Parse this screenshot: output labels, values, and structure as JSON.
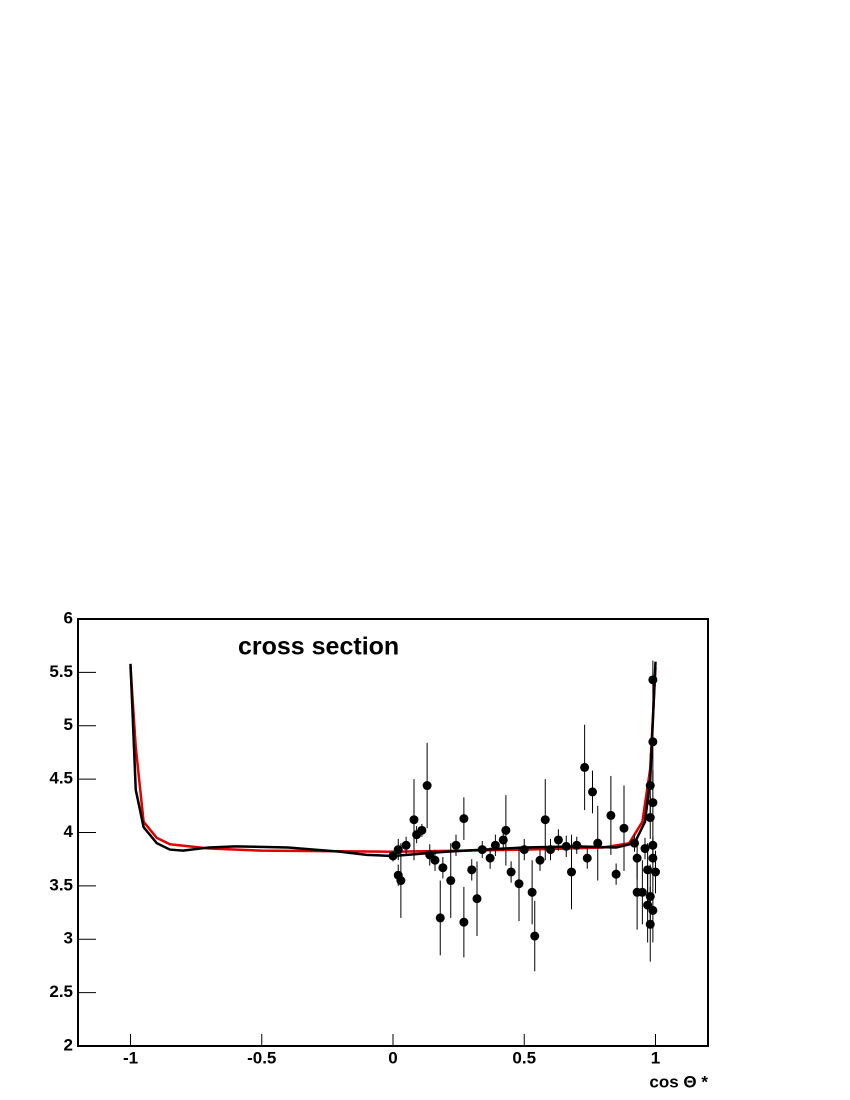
{
  "chart_data": {
    "type": "scatter",
    "title": "cross section",
    "x_label": "cos Θ *",
    "xlim": [
      -1.2,
      1.2
    ],
    "ylim": [
      2,
      6
    ],
    "xticks": [
      -1,
      -0.5,
      0,
      0.5,
      1
    ],
    "yticks": [
      2,
      2.5,
      3,
      3.5,
      4,
      4.5,
      5,
      5.5,
      6
    ],
    "series": [
      {
        "type": "line",
        "color": "#e00000",
        "x": [
          -1,
          -0.98,
          -0.95,
          -0.9,
          -0.85,
          -0.7,
          -0.5,
          0,
          0.5,
          0.8,
          0.9,
          0.95,
          0.98,
          1
        ],
        "values": [
          5.55,
          4.8,
          4.1,
          3.95,
          3.89,
          3.85,
          3.83,
          3.82,
          3.84,
          3.86,
          3.9,
          4.1,
          4.6,
          5.55
        ]
      },
      {
        "type": "line",
        "color": "#000000",
        "x": [
          -1,
          -0.98,
          -0.95,
          -0.9,
          -0.85,
          -0.8,
          -0.7,
          -0.6,
          -0.4,
          -0.2,
          -0.1,
          0,
          0.2,
          0.5,
          0.7,
          0.85,
          0.92,
          0.96,
          0.98,
          1
        ],
        "values": [
          5.58,
          4.4,
          4.05,
          3.9,
          3.84,
          3.83,
          3.86,
          3.87,
          3.86,
          3.82,
          3.79,
          3.78,
          3.82,
          3.86,
          3.87,
          3.86,
          3.9,
          4.1,
          4.5,
          5.6
        ]
      },
      {
        "type": "scatter",
        "color": "#000000",
        "x": [
          0.0,
          0.02,
          0.03,
          0.02,
          0.05,
          0.08,
          0.09,
          0.11,
          0.13,
          0.14,
          0.16,
          0.18,
          0.19,
          0.22,
          0.24,
          0.27,
          0.27,
          0.3,
          0.32,
          0.34,
          0.37,
          0.39,
          0.42,
          0.43,
          0.45,
          0.48,
          0.5,
          0.53,
          0.54,
          0.56,
          0.58,
          0.6,
          0.63,
          0.66,
          0.68,
          0.7,
          0.73,
          0.74,
          0.76,
          0.78,
          0.83,
          0.85,
          0.88,
          0.92,
          0.93,
          0.93,
          0.95,
          0.96,
          0.97,
          0.97,
          0.98,
          0.98,
          0.98,
          0.98,
          0.99,
          0.99,
          0.99,
          0.99,
          0.99,
          1.0,
          0.99
        ],
        "values": [
          3.78,
          3.6,
          3.55,
          3.84,
          3.88,
          4.12,
          3.98,
          4.02,
          4.44,
          3.79,
          3.74,
          3.2,
          3.67,
          3.55,
          3.88,
          4.13,
          3.16,
          3.65,
          3.38,
          3.84,
          3.76,
          3.88,
          3.93,
          4.02,
          3.63,
          3.52,
          3.84,
          3.44,
          3.03,
          3.74,
          4.12,
          3.84,
          3.93,
          3.87,
          3.63,
          3.88,
          4.61,
          3.76,
          4.38,
          3.9,
          4.16,
          3.61,
          4.04,
          3.9,
          3.44,
          3.76,
          3.44,
          3.85,
          3.65,
          3.32,
          4.14,
          3.4,
          3.14,
          4.44,
          3.27,
          3.88,
          4.85,
          5.43,
          4.28,
          3.63,
          3.76
        ],
        "errors": [
          0.05,
          0.1,
          0.35,
          0.1,
          0.08,
          0.38,
          0.08,
          0.06,
          0.4,
          0.1,
          0.1,
          0.35,
          0.1,
          0.35,
          0.1,
          0.2,
          0.33,
          0.1,
          0.35,
          0.08,
          0.1,
          0.1,
          0.1,
          0.33,
          0.1,
          0.35,
          0.1,
          0.3,
          0.33,
          0.1,
          0.38,
          0.1,
          0.1,
          0.1,
          0.35,
          0.08,
          0.4,
          0.1,
          0.2,
          0.35,
          0.37,
          0.1,
          0.4,
          0.08,
          0.35,
          0.2,
          0.3,
          0.1,
          0.25,
          0.35,
          0.2,
          0.3,
          0.35,
          0.3,
          0.3,
          0.1,
          0.4,
          0.18,
          0.3,
          0.2,
          0.2
        ]
      }
    ]
  }
}
